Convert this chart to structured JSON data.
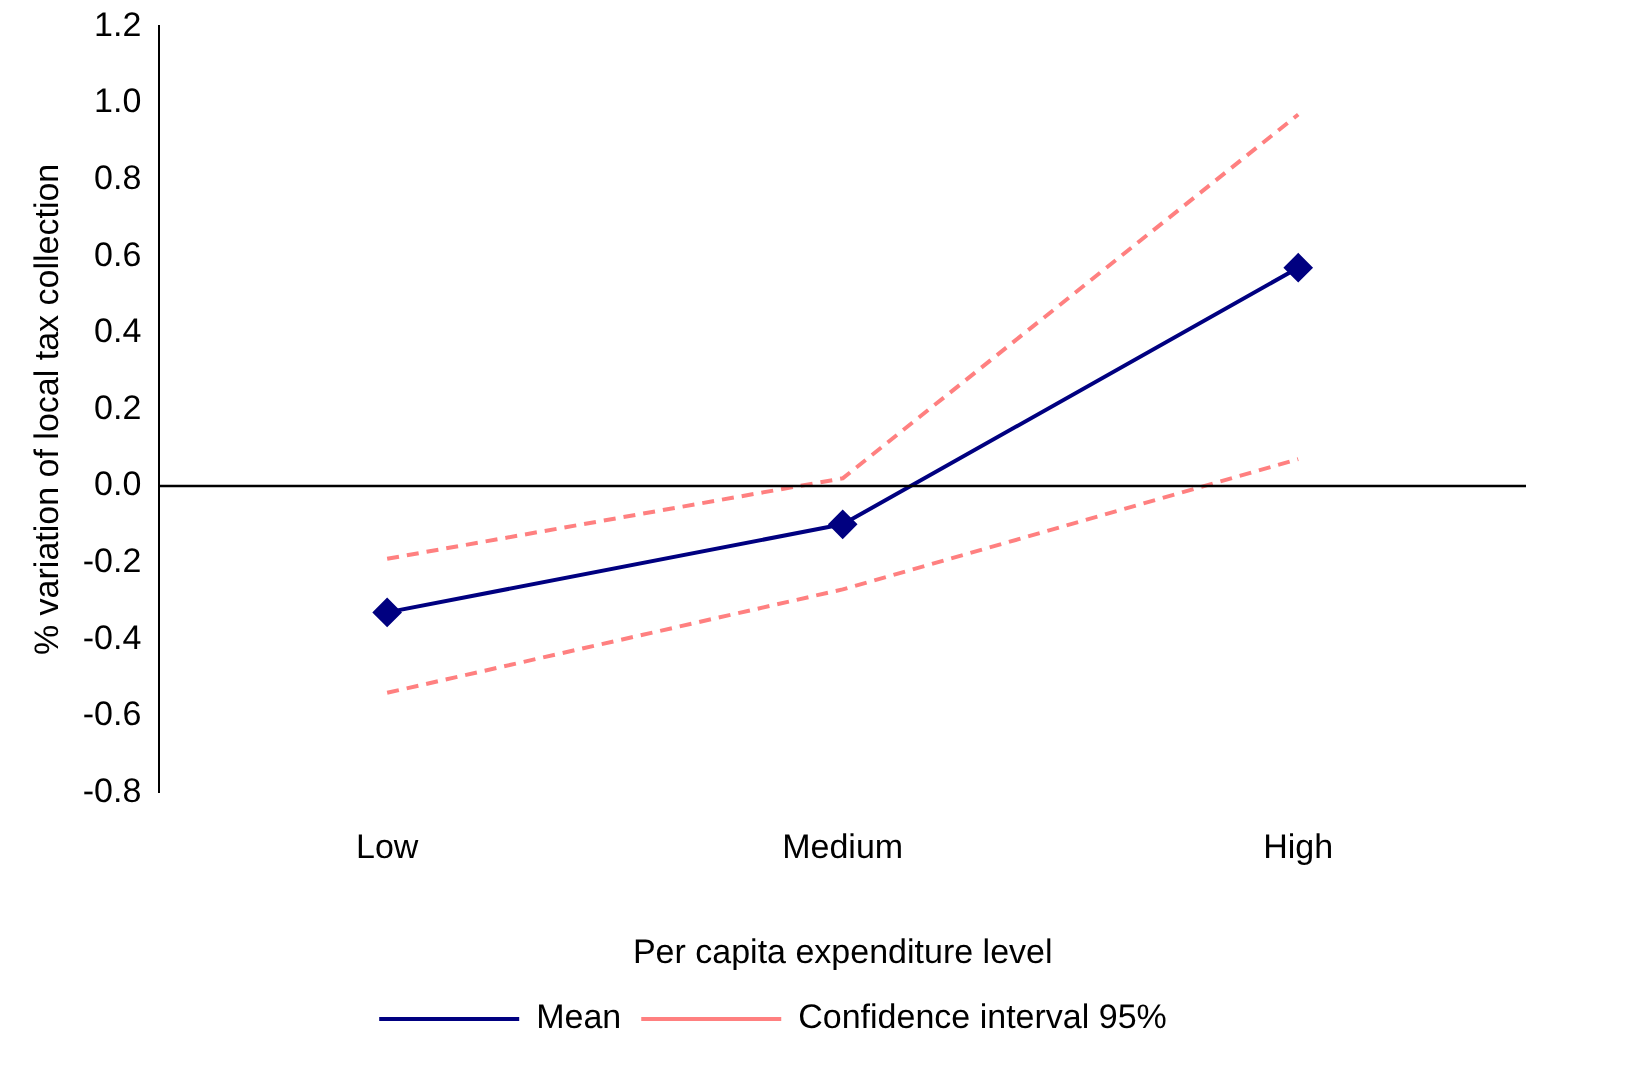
{
  "chart_data": {
    "type": "line",
    "xlabel": "Per capita expenditure level",
    "ylabel": "% variation of local tax collection",
    "categories": [
      "Low",
      "Medium",
      "High"
    ],
    "series": [
      {
        "name": "Mean",
        "color": "#000080",
        "values": [
          -0.33,
          -0.1,
          0.57
        ],
        "marker": "diamond",
        "line_style": "solid"
      },
      {
        "name": "Confidence interval 95%",
        "color": "#ff8080",
        "values": [
          -0.19,
          0.02,
          0.97
        ],
        "marker": "none",
        "line_style": "dashed"
      },
      {
        "color": "#ff8080",
        "values": [
          -0.54,
          -0.27,
          0.07
        ],
        "marker": "none",
        "line_style": "dashed"
      }
    ],
    "ylim": [
      -0.8,
      1.2
    ],
    "yticks": [
      {
        "value": -0.8,
        "label": "-0.8"
      },
      {
        "value": -0.6,
        "label": "-0.6"
      },
      {
        "value": -0.4,
        "label": "-0.4"
      },
      {
        "value": -0.2,
        "label": "-0.2"
      },
      {
        "value": 0,
        "label": "0.0"
      },
      {
        "value": 0.2,
        "label": "0.2"
      },
      {
        "value": 0.4,
        "label": "0.4"
      },
      {
        "value": 0.6,
        "label": "0.6"
      },
      {
        "value": 0.8,
        "label": "0.8"
      },
      {
        "value": 1,
        "label": "1.0"
      },
      {
        "value": 1.2,
        "label": "1.2"
      }
    ],
    "ref_lines": [
      {
        "axis": "y",
        "value": 0,
        "color": "#000000"
      }
    ],
    "grid": false,
    "legend": "bottom"
  }
}
